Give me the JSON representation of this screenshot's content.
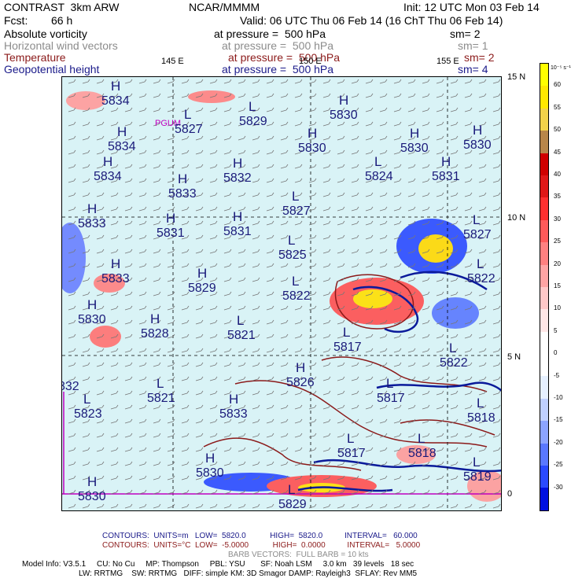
{
  "header": {
    "model": "CONTRAST  3km ARW",
    "org": "NCAR/MMMM",
    "init": "Init: 12 UTC Mon 03 Feb 14",
    "fcst_label": "Fcst:",
    "fcst_value": "66 h",
    "valid": "Valid: 06 UTC Thu 06 Feb 14 (16 ChT Thu 06 Feb 14)",
    "fields": [
      {
        "name": "Absolute vorticity",
        "level": "at pressure =  500 hPa",
        "sm": "sm= 2",
        "color": "#000000"
      },
      {
        "name": "Horizontal wind vectors",
        "level": "at pressure =  500 hPa",
        "sm": "sm= 1",
        "color": "#8c8c8c"
      },
      {
        "name": "Temperature",
        "level": "at pressure =  500 hPa",
        "sm": "sm= 2",
        "color": "#8b1a1a"
      },
      {
        "name": "Geopotential height",
        "level": "at pressure =  500 hPa",
        "sm": "sm= 4",
        "color": "#1a1a8a"
      }
    ]
  },
  "map": {
    "lon_labels": [
      "145 E",
      "150 E",
      "155 E"
    ],
    "lat_labels": [
      "15 N",
      "10 N",
      "5 N",
      "0"
    ],
    "station": "PGUM",
    "height_labels": [
      {
        "t": "H",
        "v": "5834"
      },
      {
        "t": "L",
        "v": "5827"
      },
      {
        "t": "L",
        "v": "5829"
      },
      {
        "t": "H",
        "v": "5830"
      },
      {
        "t": "H",
        "v": "5834"
      },
      {
        "t": "H",
        "v": "5830"
      },
      {
        "t": "H",
        "v": "5830"
      },
      {
        "t": "H",
        "v": "5830"
      },
      {
        "t": "H",
        "v": "5834"
      },
      {
        "t": "H",
        "v": "5833"
      },
      {
        "t": "H",
        "v": "5832"
      },
      {
        "t": "L",
        "v": "5824"
      },
      {
        "t": "H",
        "v": "5831"
      },
      {
        "t": "L",
        "v": "5827"
      },
      {
        "t": "H",
        "v": "5833"
      },
      {
        "t": "H",
        "v": "5831"
      },
      {
        "t": "H",
        "v": "5831"
      },
      {
        "t": "L",
        "v": "5827"
      },
      {
        "t": "L",
        "v": "5825"
      },
      {
        "t": "H",
        "v": "5833"
      },
      {
        "t": "L",
        "v": "5822"
      },
      {
        "t": "H",
        "v": "5829"
      },
      {
        "t": "L",
        "v": "5822"
      },
      {
        "t": "H",
        "v": "5830"
      },
      {
        "t": "H",
        "v": "5828"
      },
      {
        "t": "L",
        "v": "5821"
      },
      {
        "t": "L",
        "v": "5817"
      },
      {
        "t": "L",
        "v": "5822"
      },
      {
        "t": "L",
        "v": "5823"
      },
      {
        "t": "L",
        "v": "5821"
      },
      {
        "t": "H",
        "v": "5833"
      },
      {
        "t": "H",
        "v": "5826"
      },
      {
        "t": "L",
        "v": "5817"
      },
      {
        "t": "L",
        "v": "5818"
      },
      {
        "t": "L",
        "v": "5817"
      },
      {
        "t": "L",
        "v": "5818"
      },
      {
        "t": "L",
        "v": "5819"
      },
      {
        "t": "H",
        "v": "5830"
      },
      {
        "t": "H",
        "v": "5830"
      },
      {
        "t": "L",
        "v": "5829"
      },
      {
        "t": "",
        "v": "832"
      }
    ]
  },
  "colorbar": {
    "unit": "10⁻⁵ s⁻¹",
    "ticks": [
      "60",
      "55",
      "50",
      "45",
      "40",
      "35",
      "30",
      "25",
      "20",
      "15",
      "10",
      "5",
      "0",
      "-5",
      "-10",
      "-15",
      "-20",
      "-25",
      "-30"
    ],
    "colors": [
      "#ffff00",
      "#ffe800",
      "#f2d24a",
      "#b8864a",
      "#d00000",
      "#e01818",
      "#ff3030",
      "#ff5a5a",
      "#ff8080",
      "#ffa4a4",
      "#ffc8c8",
      "#ffe6e6",
      "#ffffff",
      "#ffffff",
      "#e6f0ff",
      "#c0d0ff",
      "#8ca4ff",
      "#5a78ff",
      "#2a4aff",
      "#0010e0"
    ]
  },
  "footer": {
    "line1": "CONTOURS:  UNITS=m   LOW=  5820.0           HIGH=  5820.0          INTERVAL=   60.000",
    "line2": "CONTOURS:  UNITS=°C  LOW=  -5.0000           HIGH=  0.0000          INTERVAL=   5.0000",
    "line3": "BARB VECTORS:  FULL BARB = 10 kts",
    "line4": "Model Info: V3.5.1     CU: No Cu     MP: Thompson     PBL: YSU       SF: Noah LSM     3.0 km   39 levels   18 sec",
    "line5": "LW: RRTMG    SW: RRTMG   DIFF: simple KM: 3D Smagor DAMP: Rayleigh3  SFLAY: Rev MM5"
  }
}
